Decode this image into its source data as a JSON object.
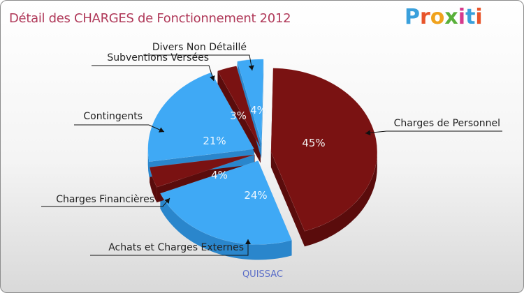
{
  "title": "Détail des CHARGES de Fonctionnement 2012",
  "logo": {
    "letters": [
      "P",
      "r",
      "o",
      "x",
      "i",
      "t",
      "i"
    ],
    "colors": [
      "#3aa0dc",
      "#e8542a",
      "#f0a21c",
      "#59b03a",
      "#d63a8c",
      "#3aa0dc",
      "#e8542a"
    ]
  },
  "city": "QUISSAC",
  "colors": {
    "red_top": "#7a1212",
    "red_side": "#5a0c0c",
    "blue_top": "#3fa9f5",
    "blue_side": "#2a86cc"
  },
  "chart_data": {
    "type": "pie",
    "title": "Détail des CHARGES de Fonctionnement 2012",
    "slices": [
      {
        "label": "Charges de Personnel",
        "value": 45,
        "pct_text": "45%",
        "color": "red"
      },
      {
        "label": "Achats et Charges Externes",
        "value": 24,
        "pct_text": "24%",
        "color": "blue"
      },
      {
        "label": "Charges Financières",
        "value": 4,
        "pct_text": "4%",
        "color": "red"
      },
      {
        "label": "Contingents",
        "value": 21,
        "pct_text": "21%",
        "color": "blue"
      },
      {
        "label": "Subventions Versées",
        "value": 3,
        "pct_text": "3%",
        "color": "red"
      },
      {
        "label": "Divers Non Détaillé",
        "value": 4,
        "pct_text": "4%",
        "color": "blue"
      }
    ]
  }
}
